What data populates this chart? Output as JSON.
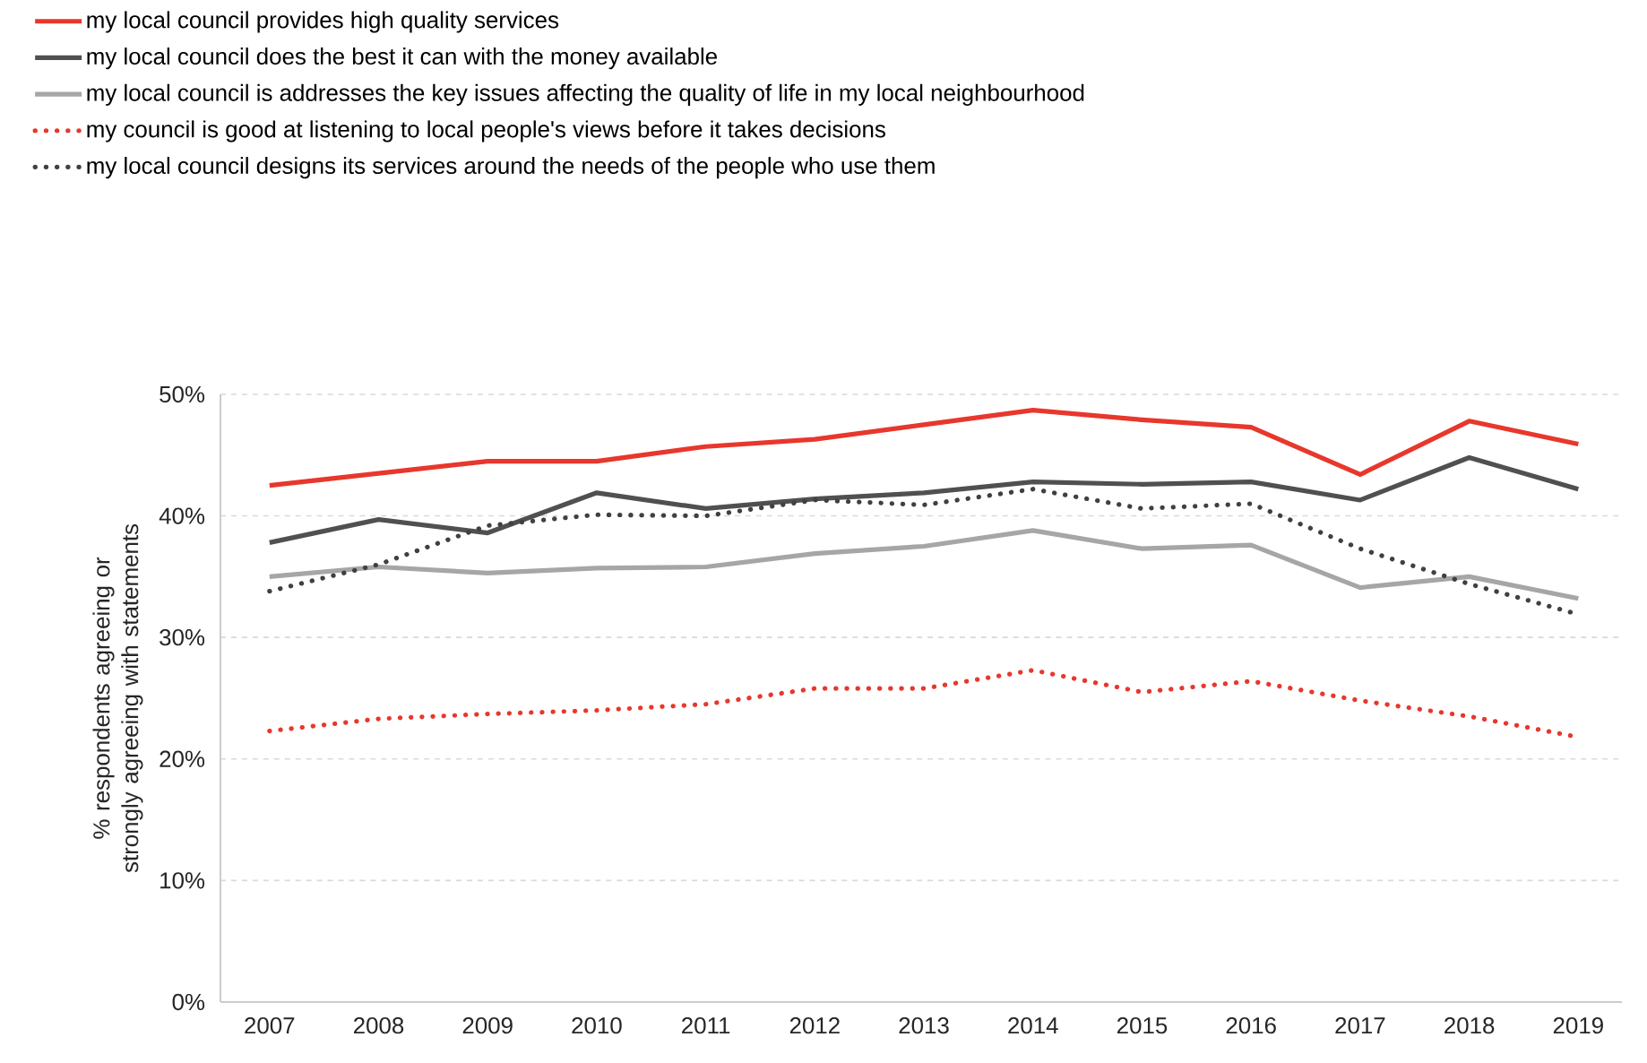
{
  "chart_data": {
    "type": "line",
    "ylabel": "% respondents agreeing or strongly agreeing with statements",
    "categories": [
      "2007",
      "2008",
      "2009",
      "2010",
      "2011",
      "2012",
      "2013",
      "2014",
      "2015",
      "2016",
      "2017",
      "2018",
      "2019"
    ],
    "series": [
      {
        "name": "my local council provides high quality services",
        "color": "#e8372c",
        "line_style": "solid",
        "values": [
          42.5,
          43.5,
          44.5,
          44.5,
          45.7,
          46.3,
          47.5,
          48.7,
          47.9,
          47.3,
          43.4,
          47.8,
          45.9
        ]
      },
      {
        "name": "my local council does the best it can with the money available",
        "color": "#505050",
        "line_style": "solid",
        "values": [
          37.8,
          39.7,
          38.6,
          41.9,
          40.6,
          41.4,
          41.9,
          42.8,
          42.6,
          42.8,
          41.3,
          44.8,
          42.2
        ]
      },
      {
        "name": "my local council is addresses the key issues affecting the quality of life in my local neighbourhood",
        "color": "#a6a6a6",
        "line_style": "solid",
        "values": [
          35.0,
          35.8,
          35.3,
          35.7,
          35.8,
          36.9,
          37.5,
          38.8,
          37.3,
          37.6,
          34.1,
          35.0,
          33.2
        ]
      },
      {
        "name": "my council is good at listening to local people's views before it takes decisions",
        "color": "#e8372c",
        "line_style": "dotted",
        "values": [
          22.3,
          23.3,
          23.7,
          24.0,
          24.5,
          25.8,
          25.8,
          27.3,
          25.5,
          26.4,
          24.8,
          23.5,
          21.8
        ]
      },
      {
        "name": "my local council designs its services around the needs of the people who use them",
        "color": "#404040",
        "line_style": "dotted",
        "values": [
          33.8,
          36.0,
          39.2,
          40.1,
          40.0,
          41.3,
          40.9,
          42.2,
          40.6,
          41.0,
          37.3,
          34.4,
          31.9
        ]
      }
    ],
    "ylim": [
      0,
      50
    ],
    "yticks": [
      {
        "value": 0,
        "label": "0%"
      },
      {
        "value": 10,
        "label": "10%"
      },
      {
        "value": 20,
        "label": "20%"
      },
      {
        "value": 30,
        "label": "30%"
      },
      {
        "value": 40,
        "label": "40%"
      },
      {
        "value": 50,
        "label": "50%"
      }
    ],
    "grid": "y",
    "legend": "top",
    "marker": "none"
  }
}
